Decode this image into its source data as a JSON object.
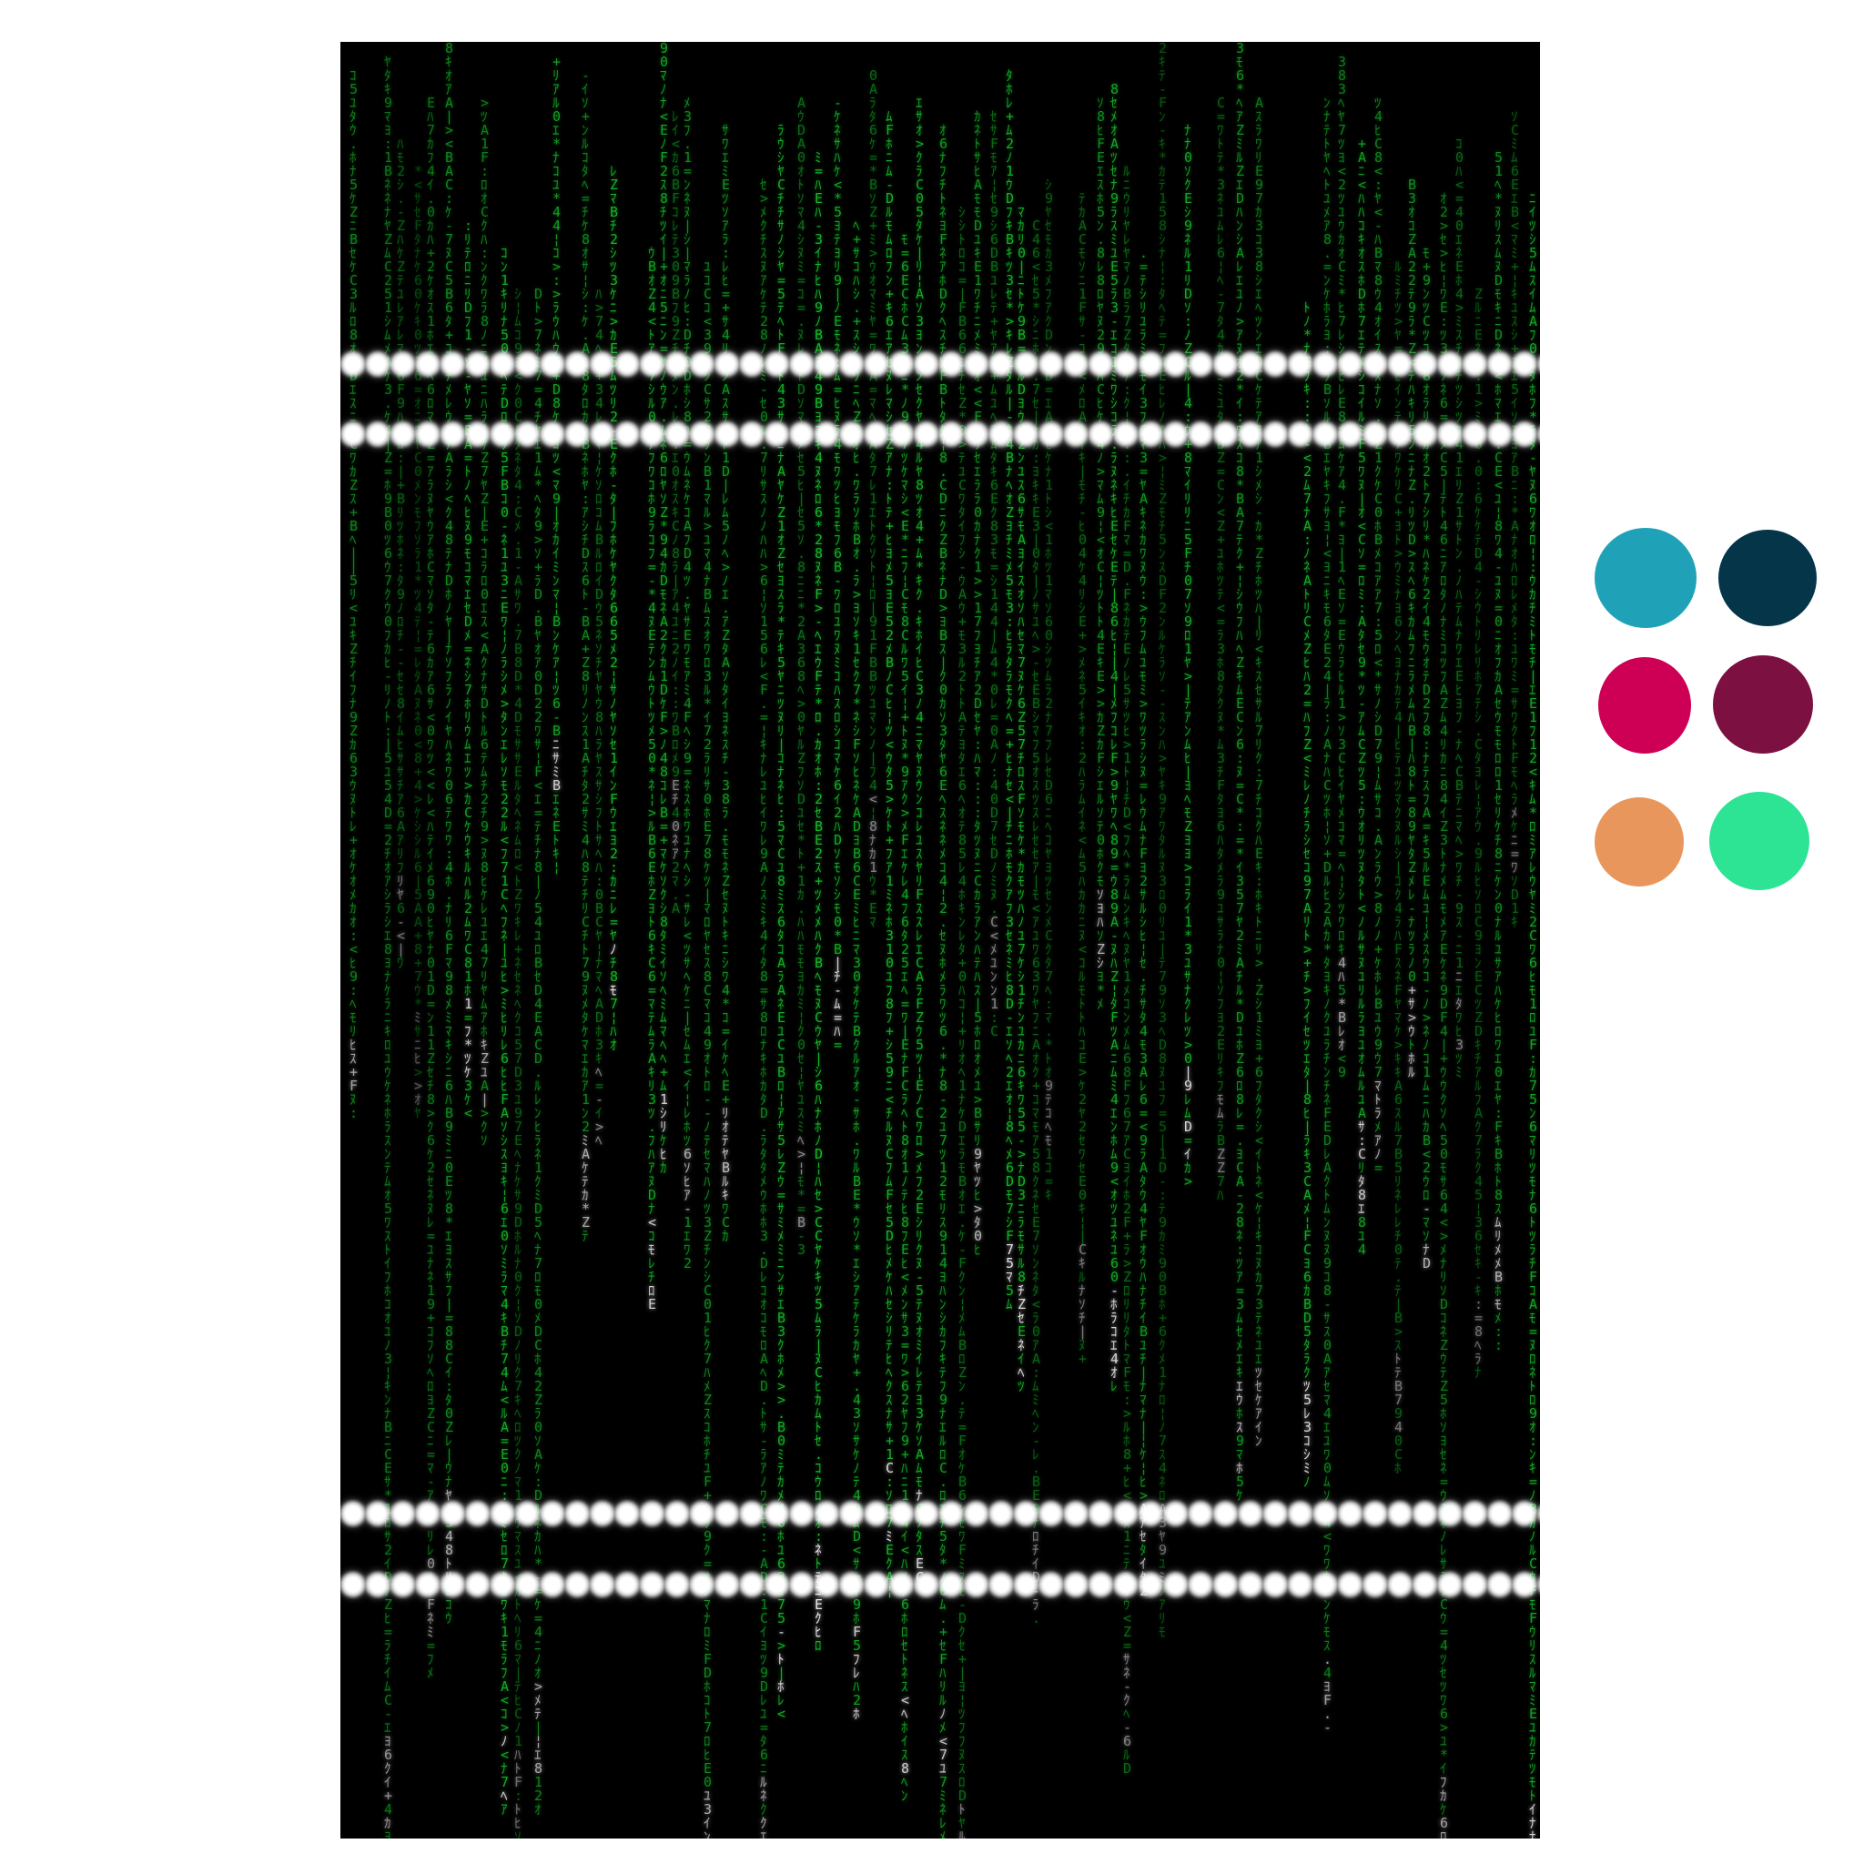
{
  "scene": {
    "background": "#000000",
    "page_background": "#ffffff",
    "rain_color": "#17b62a",
    "rain_highlight_color": "#e8e8e8",
    "light_color": "#ffffff"
  },
  "swatches": [
    {
      "name": "teal",
      "color": "#1fa2b8"
    },
    {
      "name": "dark-navy",
      "color": "#043549"
    },
    {
      "name": "crimson",
      "color": "#cd0055"
    },
    {
      "name": "plum",
      "color": "#7c1041"
    },
    {
      "name": "peach",
      "color": "#e9965d"
    },
    {
      "name": "mint",
      "color": "#2de394"
    }
  ]
}
